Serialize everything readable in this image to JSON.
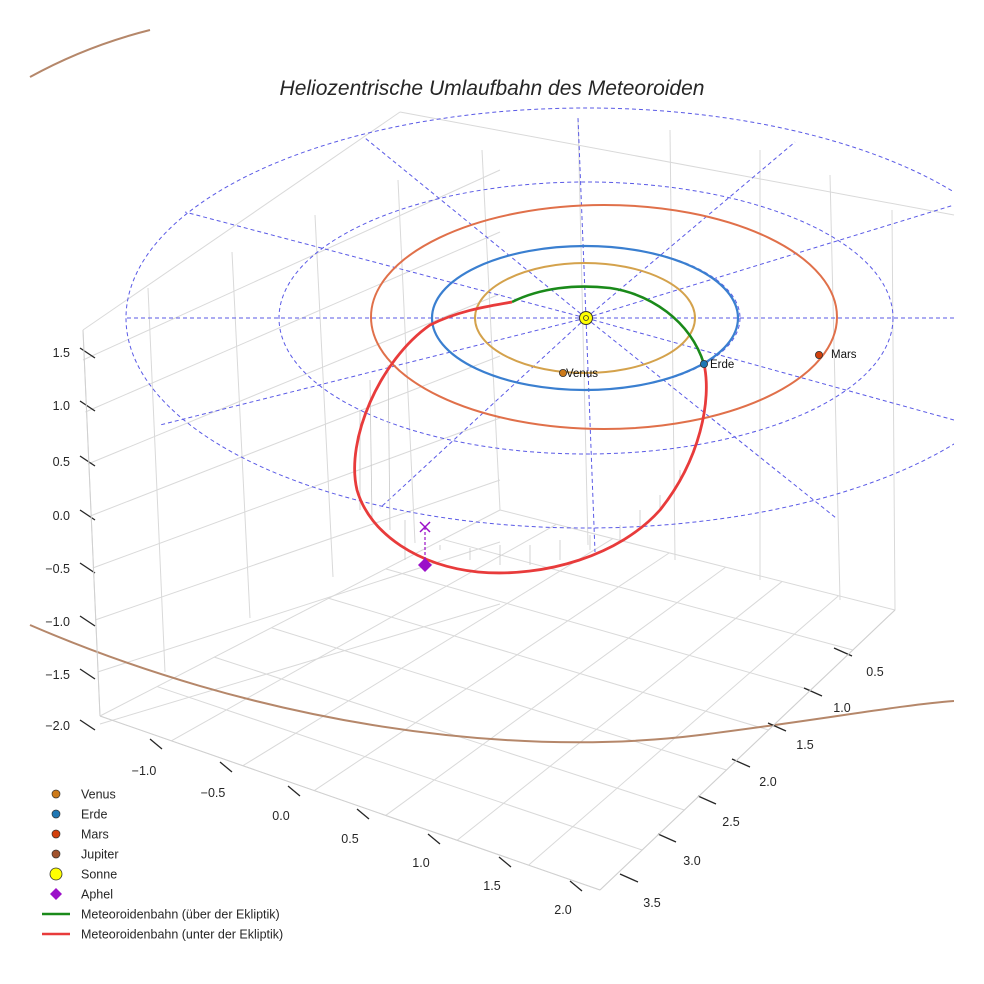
{
  "chart_data": {
    "type": "3d-line",
    "title": "Heliozentrische Umlaufbahn des Meteoroiden",
    "xlabel": "",
    "ylabel": "",
    "zlabel": "",
    "x_ticks": [
      "−1.0",
      "−0.5",
      "0.0",
      "0.5",
      "1.0",
      "1.5",
      "2.0"
    ],
    "y_ticks": [
      "0.5",
      "1.0",
      "1.5",
      "2.0",
      "2.5",
      "3.0",
      "3.5"
    ],
    "z_ticks": [
      "1.5",
      "1.0",
      "0.5",
      "0.0",
      "−0.5",
      "−1.0",
      "−1.5",
      "−2.0"
    ],
    "sun": {
      "name": "Sonne",
      "x": 0,
      "y": 0,
      "z": 0,
      "color": "#ffff00"
    },
    "planets": [
      {
        "name": "Venus",
        "a_au": 0.72,
        "color": "#d4a24c",
        "marker_color": "#cc7a1a",
        "x": -0.15,
        "y": 0.7,
        "z": 0
      },
      {
        "name": "Erde",
        "a_au": 1.0,
        "color": "#3a7fd0",
        "marker_color": "#1f77b4",
        "x": 0.75,
        "y": 0.65,
        "z": 0
      },
      {
        "name": "Mars",
        "a_au": 1.52,
        "color": "#e0704a",
        "marker_color": "#d2400c",
        "x": 1.35,
        "y": 0.5,
        "z": 0
      },
      {
        "name": "Jupiter",
        "a_au": 5.2,
        "color": "#b5876a",
        "marker_color": "#a0522d"
      }
    ],
    "ecliptic_grid_radii_au": [
      1.0,
      2.0,
      3.0
    ],
    "meteoroid_orbit": {
      "above_ecliptic": {
        "label": "Meteoroidenbahn (über der Ekliptik)",
        "color": "#1a8a1a"
      },
      "below_ecliptic": {
        "label": "Meteoroidenbahn (unter der Ekliptik)",
        "color": "#e83b3b"
      }
    },
    "aphel": {
      "name": "Aphel",
      "color": "#9b10c9",
      "x": -1.1,
      "y": 1.5,
      "z": -0.35
    },
    "legend": {
      "placement": "lower-left",
      "entries": [
        {
          "label": "Venus",
          "kind": "dot",
          "color": "#cc7a1a"
        },
        {
          "label": "Erde",
          "kind": "dot",
          "color": "#1f77b4"
        },
        {
          "label": "Mars",
          "kind": "dot",
          "color": "#d2400c"
        },
        {
          "label": "Jupiter",
          "kind": "dot",
          "color": "#a0522d"
        },
        {
          "label": "Sonne",
          "kind": "sun",
          "color": "#ffff00"
        },
        {
          "label": "Aphel",
          "kind": "diamond",
          "color": "#9b10c9"
        },
        {
          "label": "Meteoroidenbahn (über der Ekliptik)",
          "kind": "line",
          "color": "#1a8a1a"
        },
        {
          "label": "Meteoroidenbahn (unter der Ekliptik)",
          "kind": "line",
          "color": "#e83b3b"
        }
      ]
    }
  }
}
